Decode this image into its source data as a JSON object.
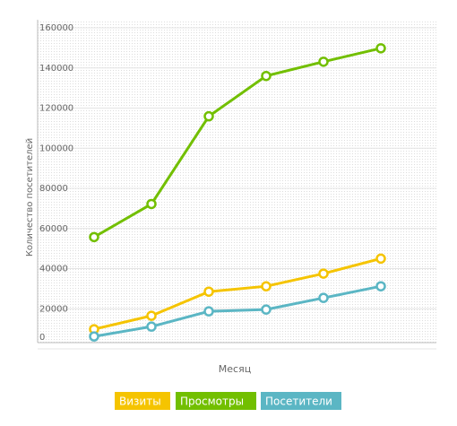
{
  "chart_data": {
    "type": "line",
    "y_label": "Количество посетителей",
    "x_label": "Месяц",
    "categories": [
      null,
      null,
      null,
      null,
      null,
      null
    ],
    "series": [
      {
        "name": "Визиты",
        "color": "#f5c400",
        "values": [
          9800,
          16500,
          28500,
          31200,
          37500,
          45000
        ]
      },
      {
        "name": "Просмотры",
        "color": "#72bf00",
        "values": [
          55700,
          72200,
          115900,
          136000,
          143100,
          149800
        ]
      },
      {
        "name": "Посетители",
        "color": "#5bb6c4",
        "values": [
          6200,
          11100,
          18700,
          19600,
          25400,
          31200
        ]
      }
    ],
    "ylim": [
      0,
      160000
    ],
    "yticks": [
      0,
      20000,
      40000,
      60000,
      80000,
      100000,
      120000,
      140000,
      160000
    ],
    "grid": true,
    "legend": "bottom"
  }
}
